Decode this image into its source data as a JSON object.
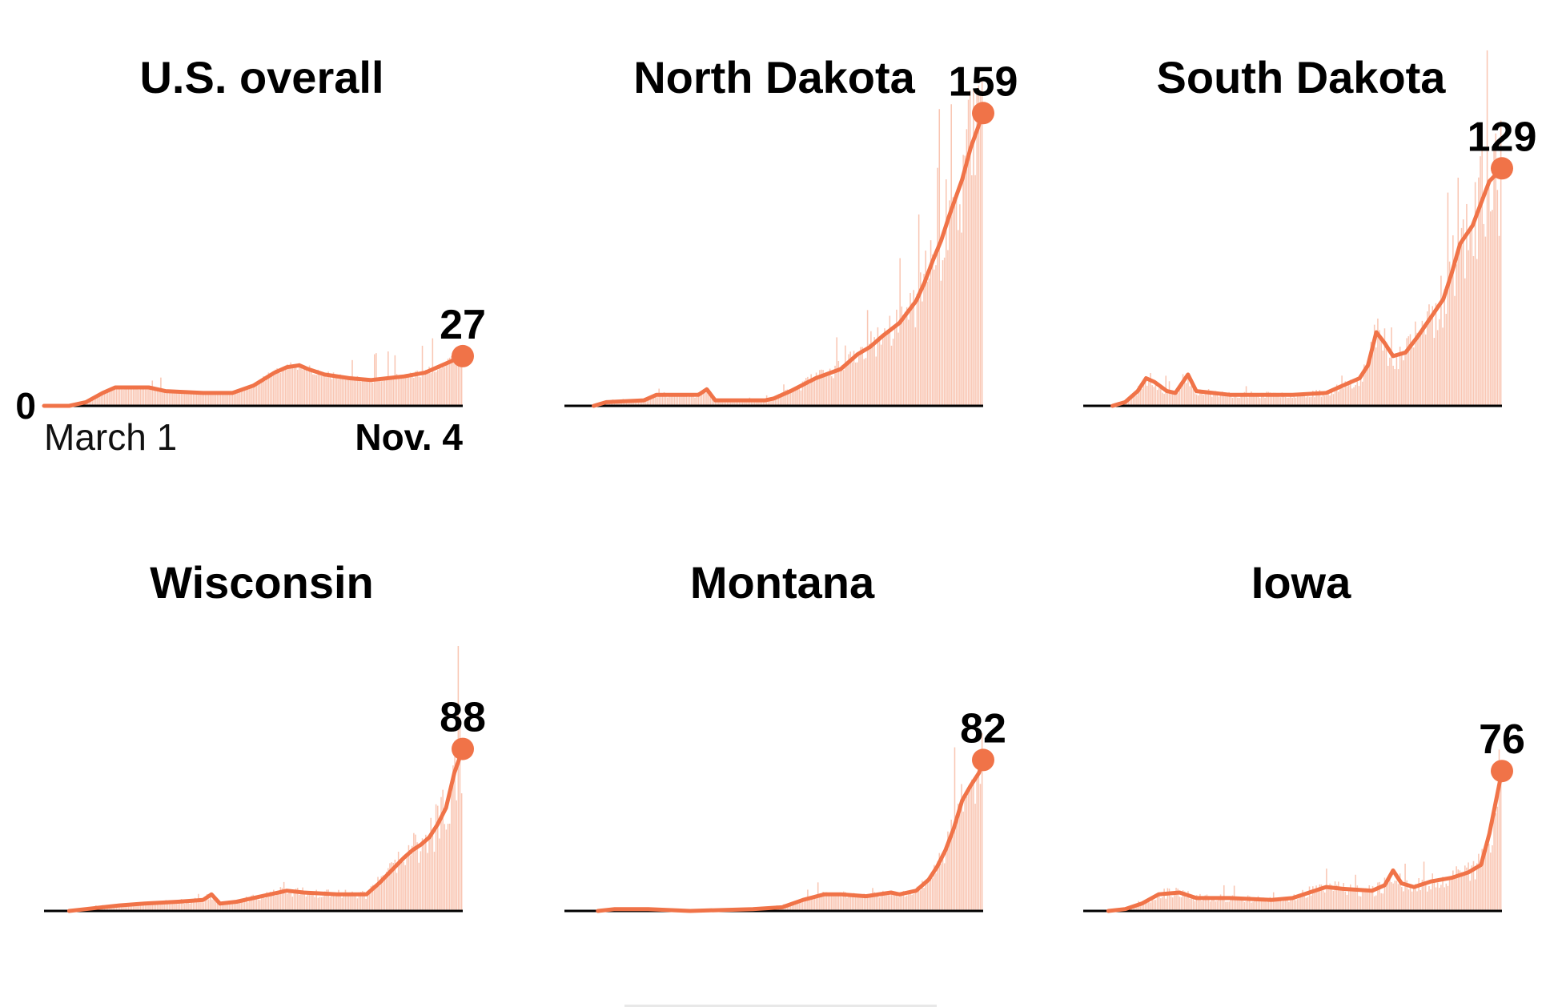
{
  "colors": {
    "line": "#f07348",
    "bars": "#f9c6b3",
    "axis": "#000000"
  },
  "axis_labels": {
    "zero": "0",
    "start": "March 1",
    "end": "Nov. 4"
  },
  "chart_data": [
    {
      "type": "line",
      "title": "U.S. overall",
      "x_start": "March 1",
      "x_end": "Nov. 4",
      "ylim": [
        0,
        159
      ],
      "end_value": 27,
      "end_label": "27",
      "trend": [
        [
          0,
          0
        ],
        [
          0.06,
          0
        ],
        [
          0.1,
          2
        ],
        [
          0.14,
          7
        ],
        [
          0.17,
          10
        ],
        [
          0.25,
          10
        ],
        [
          0.29,
          8
        ],
        [
          0.38,
          7
        ],
        [
          0.45,
          7
        ],
        [
          0.5,
          11
        ],
        [
          0.55,
          18
        ],
        [
          0.58,
          21
        ],
        [
          0.61,
          22
        ],
        [
          0.63,
          20
        ],
        [
          0.67,
          17
        ],
        [
          0.73,
          15
        ],
        [
          0.78,
          14
        ],
        [
          0.82,
          15
        ],
        [
          0.86,
          16
        ],
        [
          0.91,
          18
        ],
        [
          0.95,
          22
        ],
        [
          1.0,
          27
        ]
      ],
      "bar_noise": 0.12,
      "bar_seed": 3
    },
    {
      "type": "line",
      "title": "North Dakota",
      "ylim": [
        0,
        159
      ],
      "end_value": 159,
      "end_label": "159",
      "trend": [
        [
          0.07,
          0
        ],
        [
          0.1,
          2
        ],
        [
          0.19,
          3
        ],
        [
          0.22,
          6
        ],
        [
          0.32,
          6
        ],
        [
          0.34,
          9
        ],
        [
          0.36,
          3
        ],
        [
          0.48,
          3
        ],
        [
          0.5,
          4
        ],
        [
          0.54,
          8
        ],
        [
          0.6,
          15
        ],
        [
          0.66,
          20
        ],
        [
          0.7,
          28
        ],
        [
          0.73,
          32
        ],
        [
          0.76,
          38
        ],
        [
          0.8,
          45
        ],
        [
          0.84,
          57
        ],
        [
          0.86,
          67
        ],
        [
          0.88,
          79
        ],
        [
          0.9,
          90
        ],
        [
          0.92,
          104
        ],
        [
          0.95,
          123
        ],
        [
          0.97,
          140
        ],
        [
          1.0,
          159
        ]
      ],
      "bar_noise": 0.25,
      "bar_seed": 11
    },
    {
      "type": "line",
      "title": "South Dakota",
      "ylim": [
        0,
        159
      ],
      "end_value": 129,
      "end_label": "129",
      "trend": [
        [
          0.07,
          0
        ],
        [
          0.1,
          2
        ],
        [
          0.13,
          8
        ],
        [
          0.15,
          15
        ],
        [
          0.17,
          13
        ],
        [
          0.2,
          8
        ],
        [
          0.22,
          7
        ],
        [
          0.25,
          17
        ],
        [
          0.27,
          8
        ],
        [
          0.31,
          7
        ],
        [
          0.35,
          6
        ],
        [
          0.5,
          6
        ],
        [
          0.58,
          7
        ],
        [
          0.62,
          11
        ],
        [
          0.66,
          15
        ],
        [
          0.68,
          22
        ],
        [
          0.7,
          40
        ],
        [
          0.72,
          34
        ],
        [
          0.74,
          27
        ],
        [
          0.77,
          29
        ],
        [
          0.8,
          38
        ],
        [
          0.83,
          48
        ],
        [
          0.86,
          58
        ],
        [
          0.88,
          72
        ],
        [
          0.9,
          88
        ],
        [
          0.93,
          98
        ],
        [
          0.95,
          110
        ],
        [
          0.97,
          122
        ],
        [
          1.0,
          129
        ]
      ],
      "bar_noise": 0.3,
      "bar_seed": 23
    },
    {
      "type": "line",
      "title": "Wisconsin",
      "ylim": [
        0,
        159
      ],
      "end_value": 88,
      "end_label": "88",
      "trend": [
        [
          0.06,
          0
        ],
        [
          0.1,
          1
        ],
        [
          0.18,
          3
        ],
        [
          0.24,
          4
        ],
        [
          0.32,
          5
        ],
        [
          0.38,
          6
        ],
        [
          0.4,
          9
        ],
        [
          0.42,
          4
        ],
        [
          0.46,
          5
        ],
        [
          0.52,
          8
        ],
        [
          0.58,
          11
        ],
        [
          0.62,
          10
        ],
        [
          0.7,
          9
        ],
        [
          0.77,
          9
        ],
        [
          0.8,
          15
        ],
        [
          0.83,
          22
        ],
        [
          0.86,
          29
        ],
        [
          0.88,
          33
        ],
        [
          0.9,
          36
        ],
        [
          0.92,
          40
        ],
        [
          0.94,
          47
        ],
        [
          0.96,
          56
        ],
        [
          0.98,
          75
        ],
        [
          1.0,
          88
        ]
      ],
      "bar_noise": 0.28,
      "bar_seed": 37
    },
    {
      "type": "line",
      "title": "Montana",
      "ylim": [
        0,
        159
      ],
      "end_value": 82,
      "end_label": "82",
      "trend": [
        [
          0.08,
          0
        ],
        [
          0.12,
          1
        ],
        [
          0.2,
          1
        ],
        [
          0.3,
          0
        ],
        [
          0.45,
          1
        ],
        [
          0.52,
          2
        ],
        [
          0.57,
          6
        ],
        [
          0.62,
          9
        ],
        [
          0.66,
          9
        ],
        [
          0.72,
          8
        ],
        [
          0.78,
          10
        ],
        [
          0.8,
          9
        ],
        [
          0.84,
          11
        ],
        [
          0.87,
          17
        ],
        [
          0.89,
          24
        ],
        [
          0.91,
          33
        ],
        [
          0.93,
          45
        ],
        [
          0.95,
          60
        ],
        [
          0.97,
          68
        ],
        [
          0.99,
          75
        ],
        [
          1.0,
          82
        ]
      ],
      "bar_noise": 0.2,
      "bar_seed": 51
    },
    {
      "type": "line",
      "title": "Iowa",
      "ylim": [
        0,
        159
      ],
      "end_value": 76,
      "end_label": "76",
      "trend": [
        [
          0.06,
          0
        ],
        [
          0.1,
          1
        ],
        [
          0.14,
          4
        ],
        [
          0.18,
          9
        ],
        [
          0.23,
          10
        ],
        [
          0.27,
          7
        ],
        [
          0.35,
          7
        ],
        [
          0.45,
          6
        ],
        [
          0.5,
          7
        ],
        [
          0.54,
          10
        ],
        [
          0.58,
          13
        ],
        [
          0.62,
          12
        ],
        [
          0.69,
          11
        ],
        [
          0.72,
          14
        ],
        [
          0.74,
          22
        ],
        [
          0.76,
          15
        ],
        [
          0.79,
          13
        ],
        [
          0.83,
          16
        ],
        [
          0.88,
          18
        ],
        [
          0.92,
          21
        ],
        [
          0.95,
          25
        ],
        [
          0.97,
          42
        ],
        [
          1.0,
          76
        ]
      ],
      "bar_noise": 0.32,
      "bar_seed": 67
    }
  ]
}
